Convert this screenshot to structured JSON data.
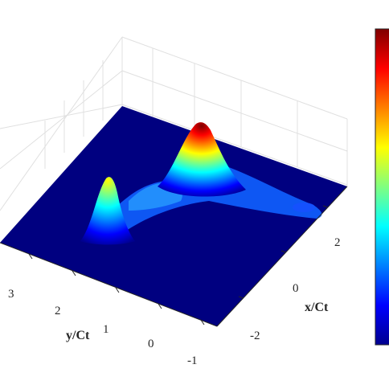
{
  "chart_data": {
    "type": "surface",
    "title": "",
    "xlabel": "x/Ct",
    "ylabel": "y/Ct",
    "zlabel": "",
    "x_ticks": [
      "-2",
      "0",
      "2"
    ],
    "y_ticks": [
      "-1",
      "0",
      "1",
      "2",
      "3"
    ],
    "xlim": [
      -3.2,
      3.2
    ],
    "ylim": [
      -1.3,
      4.2
    ],
    "grid": true,
    "colormap": "jet",
    "colormap_stops": [
      "#00008f",
      "#0000ff",
      "#0080ff",
      "#00ffff",
      "#80ff80",
      "#ffff00",
      "#ff8000",
      "#ff0000",
      "#800000"
    ],
    "colorbar": {
      "position": "right"
    },
    "baseline_color": "#000080",
    "peaks": [
      {
        "x": -1.6,
        "y": 2.2,
        "relative_height": 0.62
      },
      {
        "x": 0.8,
        "y": 0.9,
        "relative_height": 1.0
      }
    ]
  }
}
